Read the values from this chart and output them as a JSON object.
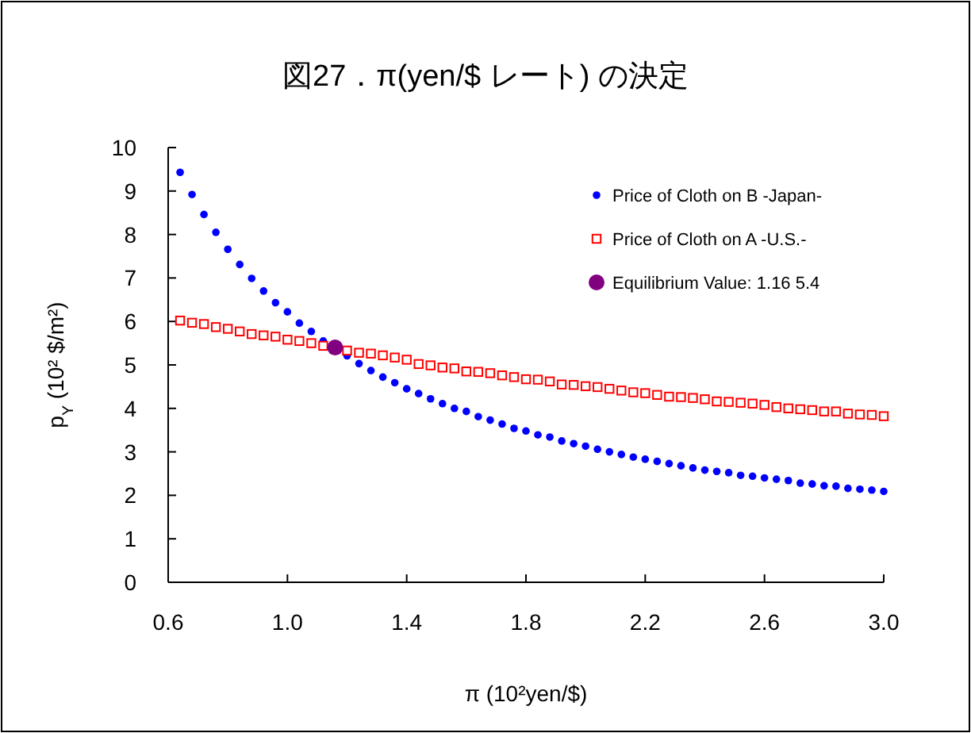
{
  "chart_data": {
    "type": "scatter",
    "title": "図27．π(yen/$ レート) の決定",
    "xlabel": "π (10²yen/$)",
    "ylabel": "p$_{Y}$ (10² $/m²)",
    "x": [
      0.64,
      0.68,
      0.72,
      0.76,
      0.8,
      0.84,
      0.88,
      0.92,
      0.96,
      1,
      1.04,
      1.08,
      1.12,
      1.16,
      1.2,
      1.24,
      1.28,
      1.32,
      1.36,
      1.4,
      1.44,
      1.48,
      1.52,
      1.56,
      1.6,
      1.64,
      1.68,
      1.72,
      1.76,
      1.8,
      1.84,
      1.88,
      1.92,
      1.96,
      2,
      2.04,
      2.08,
      2.12,
      2.16,
      2.2,
      2.24,
      2.28,
      2.32,
      2.36,
      2.4,
      2.44,
      2.48,
      2.52,
      2.56,
      2.6,
      2.64,
      2.68,
      2.72,
      2.76,
      2.8,
      2.84,
      2.88,
      2.92,
      2.96,
      3
    ],
    "series": [
      {
        "name": "Price of Cloth on B -Japan-",
        "color": "#0000ff",
        "marker": "circle",
        "values": [
          9.43,
          8.92,
          8.46,
          8.05,
          7.66,
          7.31,
          6.99,
          6.7,
          6.43,
          6.22,
          5.96,
          5.77,
          5.55,
          null,
          5.21,
          5.03,
          4.87,
          4.72,
          4.59,
          4.45,
          4.34,
          4.22,
          4.11,
          4.0,
          3.93,
          3.81,
          3.73,
          3.64,
          3.54,
          3.48,
          3.39,
          3.34,
          3.25,
          3.19,
          3.13,
          3.06,
          3.0,
          2.94,
          2.88,
          2.83,
          2.78,
          2.73,
          2.68,
          2.63,
          2.58,
          2.55,
          2.52,
          2.46,
          2.44,
          2.4,
          2.37,
          2.34,
          2.28,
          2.26,
          2.22,
          2.21,
          2.16,
          2.14,
          2.12,
          2.09
        ]
      },
      {
        "name": "Price of Cloth on A -U.S.-",
        "color": "#ff0000",
        "marker": "square",
        "values": [
          6.02,
          5.97,
          5.94,
          5.87,
          5.83,
          5.77,
          5.71,
          5.68,
          5.65,
          5.58,
          5.55,
          5.5,
          5.44,
          null,
          5.33,
          5.28,
          5.26,
          5.22,
          5.17,
          5.12,
          5.02,
          4.99,
          4.94,
          4.92,
          4.85,
          4.84,
          4.81,
          4.76,
          4.72,
          4.67,
          4.66,
          4.62,
          4.55,
          4.54,
          4.51,
          4.49,
          4.45,
          4.41,
          4.37,
          4.35,
          4.31,
          4.27,
          4.26,
          4.24,
          4.21,
          4.16,
          4.15,
          4.13,
          4.11,
          4.08,
          4.03,
          4.0,
          3.98,
          3.96,
          3.93,
          3.93,
          3.88,
          3.86,
          3.85,
          3.82
        ]
      },
      {
        "name": "Equilibrium Value: 1.16  5.4",
        "color": "#800080",
        "marker": "circle",
        "x": [
          1.16
        ],
        "values": [
          5.4
        ]
      }
    ],
    "xlim": [
      0.6,
      3.0
    ],
    "xticks": [
      {
        "value": 0.6,
        "label": "0.6"
      },
      {
        "value": 1.0,
        "label": "1.0"
      },
      {
        "value": 1.4,
        "label": "1.4"
      },
      {
        "value": 1.8,
        "label": "1.8"
      },
      {
        "value": 2.2,
        "label": "2.2"
      },
      {
        "value": 2.6,
        "label": "2.6"
      },
      {
        "value": 3.0,
        "label": "3.0"
      }
    ],
    "ylim": [
      0,
      10
    ],
    "yticks": [
      0,
      1,
      2,
      3,
      4,
      5,
      6,
      7,
      8,
      9,
      10
    ],
    "legend": "top right",
    "grid": false
  }
}
